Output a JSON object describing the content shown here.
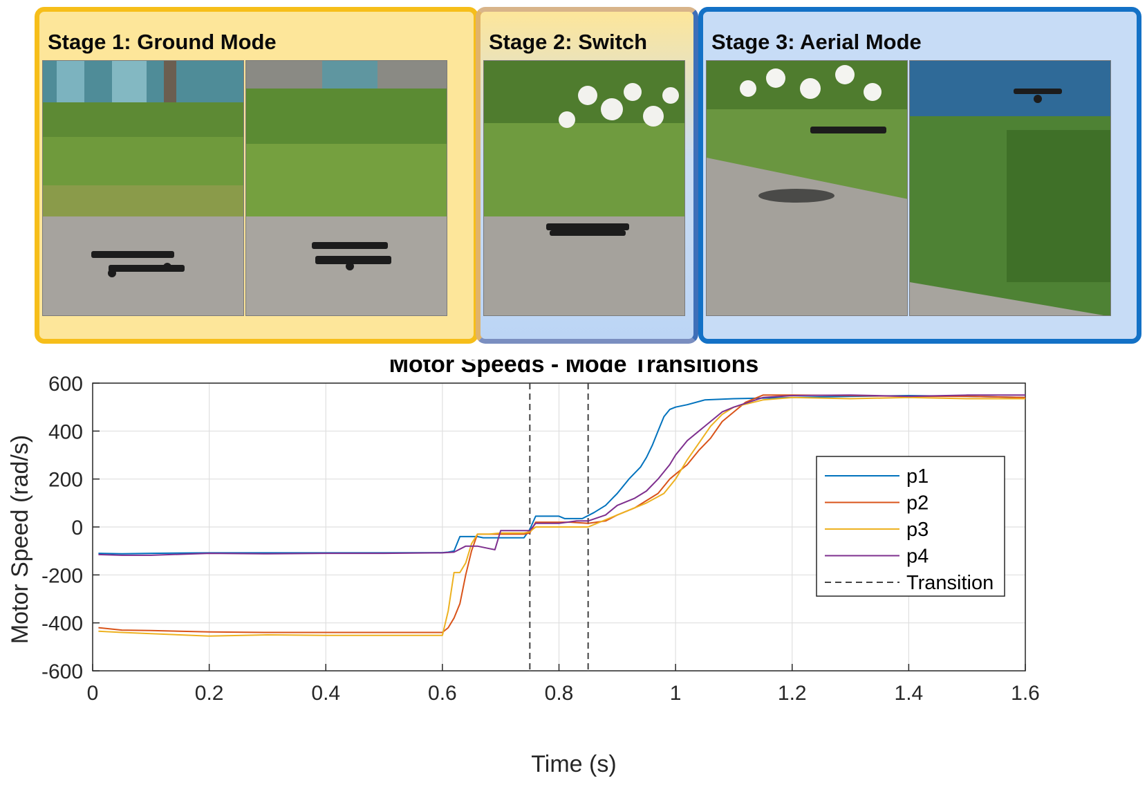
{
  "stages": [
    {
      "title": "Stage 1: Ground Mode",
      "color": "#f6be1a"
    },
    {
      "title": "Stage 2:  Switch",
      "color": "#3e6fb8"
    },
    {
      "title": "Stage 3: Aerial Mode",
      "color": "#1371c6"
    }
  ],
  "chart_data": {
    "type": "line",
    "title": "Motor Speeds - Mode Transitions",
    "xlabel": "Time (s)",
    "ylabel": "Motor Speed (rad/s)",
    "xlim": [
      0,
      1.6
    ],
    "ylim": [
      -600,
      600
    ],
    "xticks": [
      0,
      0.2,
      0.4,
      0.6,
      0.8,
      1,
      1.2,
      1.4,
      1.6
    ],
    "xtick_labels": [
      "0",
      "0.2",
      "0.4",
      "0.6",
      "0.8",
      "1",
      "1.2",
      "1.4",
      "1.6"
    ],
    "yticks": [
      -600,
      -400,
      -200,
      0,
      200,
      400,
      600
    ],
    "ytick_labels": [
      "-600",
      "-400",
      "-200",
      "0",
      "200",
      "400",
      "600"
    ],
    "grid": true,
    "legend_position": "right",
    "series": [
      {
        "name": "p1",
        "color": "#0072bd",
        "x": [
          0.01,
          0.05,
          0.1,
          0.2,
          0.3,
          0.4,
          0.5,
          0.6,
          0.61,
          0.62,
          0.63,
          0.66,
          0.67,
          0.7,
          0.74,
          0.75,
          0.76,
          0.8,
          0.81,
          0.84,
          0.86,
          0.88,
          0.9,
          0.92,
          0.94,
          0.95,
          0.96,
          0.97,
          0.98,
          0.99,
          1.0,
          1.02,
          1.05,
          1.1,
          1.2,
          1.3,
          1.4,
          1.5,
          1.6
        ],
        "y": [
          -110,
          -112,
          -110,
          -108,
          -108,
          -108,
          -108,
          -107,
          -105,
          -100,
          -40,
          -40,
          -45,
          -45,
          -45,
          -10,
          45,
          45,
          35,
          35,
          60,
          90,
          140,
          200,
          250,
          290,
          340,
          400,
          460,
          490,
          500,
          510,
          530,
          535,
          540,
          545,
          548,
          545,
          540
        ]
      },
      {
        "name": "p2",
        "color": "#d95319",
        "x": [
          0.01,
          0.05,
          0.1,
          0.2,
          0.3,
          0.4,
          0.5,
          0.6,
          0.61,
          0.62,
          0.63,
          0.64,
          0.65,
          0.66,
          0.68,
          0.7,
          0.74,
          0.75,
          0.76,
          0.8,
          0.82,
          0.85,
          0.88,
          0.9,
          0.93,
          0.95,
          0.97,
          0.99,
          1.0,
          1.02,
          1.04,
          1.06,
          1.08,
          1.1,
          1.12,
          1.15,
          1.2,
          1.3,
          1.4,
          1.5,
          1.6
        ],
        "y": [
          -420,
          -430,
          -432,
          -438,
          -440,
          -440,
          -440,
          -440,
          -420,
          -380,
          -320,
          -200,
          -100,
          -30,
          -30,
          -30,
          -30,
          -25,
          20,
          20,
          20,
          15,
          25,
          50,
          80,
          110,
          140,
          200,
          220,
          260,
          320,
          370,
          440,
          480,
          520,
          550,
          550,
          548,
          545,
          545,
          540
        ]
      },
      {
        "name": "p3",
        "color": "#edb120",
        "x": [
          0.01,
          0.05,
          0.1,
          0.2,
          0.3,
          0.4,
          0.5,
          0.6,
          0.61,
          0.62,
          0.63,
          0.64,
          0.65,
          0.66,
          0.68,
          0.7,
          0.74,
          0.75,
          0.76,
          0.8,
          0.85,
          0.87,
          0.9,
          0.93,
          0.95,
          0.98,
          1.0,
          1.02,
          1.04,
          1.06,
          1.08,
          1.1,
          1.15,
          1.2,
          1.3,
          1.4,
          1.5,
          1.6
        ],
        "y": [
          -435,
          -440,
          -445,
          -455,
          -450,
          -452,
          -452,
          -452,
          -350,
          -190,
          -190,
          -150,
          -70,
          -30,
          -30,
          -25,
          -25,
          -20,
          0,
          0,
          0,
          20,
          50,
          80,
          100,
          140,
          200,
          280,
          350,
          420,
          470,
          500,
          530,
          540,
          535,
          540,
          535,
          535
        ]
      },
      {
        "name": "p4",
        "color": "#7e2f8e",
        "x": [
          0.01,
          0.05,
          0.1,
          0.2,
          0.3,
          0.4,
          0.5,
          0.6,
          0.62,
          0.64,
          0.66,
          0.68,
          0.69,
          0.7,
          0.73,
          0.75,
          0.76,
          0.8,
          0.83,
          0.85,
          0.88,
          0.9,
          0.93,
          0.95,
          0.97,
          0.99,
          1.0,
          1.02,
          1.04,
          1.06,
          1.08,
          1.1,
          1.15,
          1.2,
          1.3,
          1.4,
          1.5,
          1.6
        ],
        "y": [
          -115,
          -118,
          -118,
          -110,
          -112,
          -110,
          -110,
          -108,
          -105,
          -80,
          -80,
          -90,
          -95,
          -15,
          -15,
          -15,
          15,
          15,
          25,
          25,
          50,
          90,
          120,
          150,
          200,
          260,
          300,
          360,
          400,
          440,
          480,
          500,
          540,
          548,
          550,
          545,
          550,
          550
        ]
      }
    ],
    "transitions": [
      0.75,
      0.85
    ],
    "transition_label": "Transition",
    "transition_color": "#404040"
  }
}
